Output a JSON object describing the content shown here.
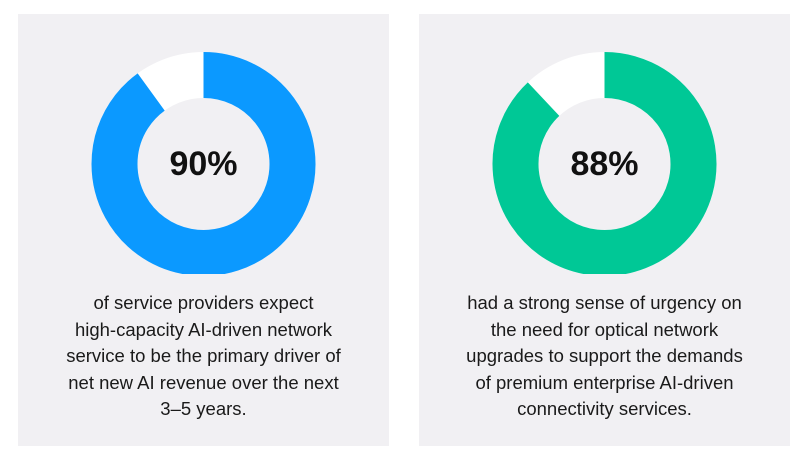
{
  "chart_data": [
    {
      "type": "pie",
      "variant": "donut",
      "value": 90,
      "max": 100,
      "center_label": "90%",
      "color": "#0b99ff",
      "track_color": "#ffffff",
      "caption": "of service providers expect\nhigh-capacity AI-driven network\nservice to be the primary driver of\nnet new AI revenue over the next\n3–5 years."
    },
    {
      "type": "pie",
      "variant": "donut",
      "value": 88,
      "max": 100,
      "center_label": "88%",
      "color": "#00c896",
      "track_color": "#ffffff",
      "caption": "had a strong sense of urgency on\nthe need for optical network\nupgrades to support the demands\nof premium enterprise AI-driven\nconnectivity services."
    }
  ]
}
